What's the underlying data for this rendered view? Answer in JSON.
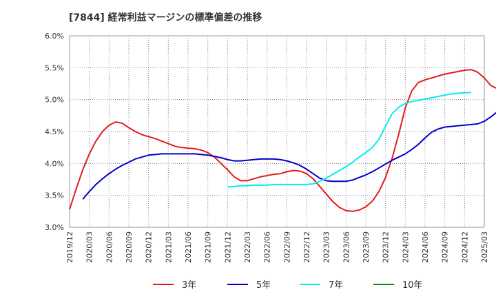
{
  "chart_data": {
    "type": "line",
    "title": "[7844]  経常利益マージンの標準偏差の推移",
    "xlabel": "",
    "ylabel": "",
    "ylim": [
      3.0,
      6.0
    ],
    "y_ticks": [
      "3.0%",
      "3.5%",
      "4.0%",
      "4.5%",
      "5.0%",
      "5.5%",
      "6.0%"
    ],
    "x_ticks": [
      "2019/12",
      "2020/03",
      "2020/06",
      "2020/09",
      "2020/12",
      "2021/03",
      "2021/06",
      "2021/09",
      "2021/12",
      "2022/03",
      "2022/06",
      "2022/09",
      "2022/12",
      "2023/03",
      "2023/06",
      "2023/09",
      "2023/12",
      "2024/03",
      "2024/06",
      "2024/09",
      "2024/12",
      "2025/03"
    ],
    "x_start": "2019/12",
    "grid": true,
    "legend_position": "bottom",
    "series": [
      {
        "name": "3年",
        "color": "#e41a1c",
        "start": "2019/12",
        "values": [
          3.28,
          3.6,
          3.9,
          4.15,
          4.35,
          4.5,
          4.6,
          4.65,
          4.63,
          4.56,
          4.5,
          4.45,
          4.42,
          4.39,
          4.35,
          4.31,
          4.27,
          4.25,
          4.24,
          4.23,
          4.21,
          4.17,
          4.1,
          4.0,
          3.9,
          3.79,
          3.73,
          3.73,
          3.76,
          3.79,
          3.81,
          3.83,
          3.84,
          3.87,
          3.89,
          3.88,
          3.84,
          3.76,
          3.64,
          3.52,
          3.4,
          3.31,
          3.26,
          3.25,
          3.27,
          3.32,
          3.41,
          3.56,
          3.78,
          4.08,
          4.46,
          4.87,
          5.14,
          5.27,
          5.31,
          5.34,
          5.37,
          5.4,
          5.42,
          5.44,
          5.46,
          5.47,
          5.43,
          5.34,
          5.22,
          5.17
        ]
      },
      {
        "name": "5年",
        "color": "#0000cc",
        "start": "2020/02",
        "values": [
          3.44,
          3.56,
          3.67,
          3.76,
          3.84,
          3.91,
          3.97,
          4.02,
          4.07,
          4.1,
          4.13,
          4.14,
          4.15,
          4.15,
          4.15,
          4.15,
          4.15,
          4.15,
          4.14,
          4.13,
          4.11,
          4.09,
          4.06,
          4.04,
          4.04,
          4.05,
          4.06,
          4.07,
          4.07,
          4.07,
          4.06,
          4.04,
          4.01,
          3.97,
          3.91,
          3.84,
          3.77,
          3.73,
          3.72,
          3.72,
          3.72,
          3.74,
          3.78,
          3.82,
          3.87,
          3.93,
          3.99,
          4.05,
          4.1,
          4.15,
          4.22,
          4.3,
          4.4,
          4.49,
          4.54,
          4.57,
          4.58,
          4.59,
          4.6,
          4.61,
          4.62,
          4.66,
          4.73,
          4.81,
          4.88,
          4.92,
          4.93
        ]
      },
      {
        "name": "7年",
        "color": "#00eeee",
        "start": "2021/12",
        "values": [
          3.63,
          3.64,
          3.65,
          3.65,
          3.66,
          3.66,
          3.66,
          3.67,
          3.67,
          3.67,
          3.67,
          3.67,
          3.67,
          3.68,
          3.72,
          3.77,
          3.83,
          3.89,
          3.95,
          4.02,
          4.1,
          4.17,
          4.25,
          4.38,
          4.58,
          4.78,
          4.88,
          4.94,
          4.97,
          4.99,
          5.01,
          5.03,
          5.05,
          5.07,
          5.09,
          5.1,
          5.11,
          5.11
        ]
      },
      {
        "name": "10年",
        "color": "#1a8a1a",
        "start": "2019/12",
        "values": []
      }
    ]
  }
}
